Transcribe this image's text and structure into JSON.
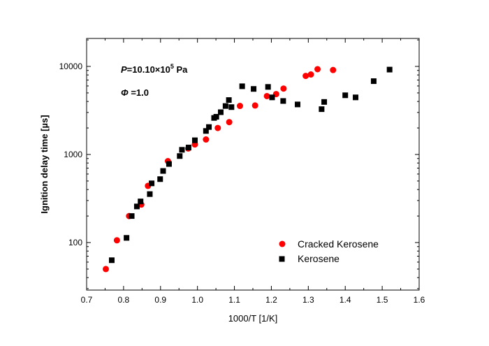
{
  "chart_data": {
    "type": "scatter",
    "xlabel": "1000/T  [1/K]",
    "ylabel": "Ignition delay time [µs]",
    "xlim": [
      0.7,
      1.6
    ],
    "ylim": [
      30,
      20000
    ],
    "y_scale": "log",
    "x_ticks": [
      "0.7",
      "0.8",
      "0.9",
      "1.0",
      "1.1",
      "1.2",
      "1.3",
      "1.4",
      "1.5",
      "1.6"
    ],
    "y_ticks": [
      "100",
      "1000",
      "10000"
    ],
    "grid": false,
    "legend_position": "bottom-right",
    "annotations": {
      "pressure_symbol": "P",
      "pressure_value": "=10.10×10",
      "pressure_exponent": "5",
      "pressure_unit": " Pa",
      "phi_symbol": "Φ",
      "phi_value": " =1.0"
    },
    "series": [
      {
        "name": "Cracked Kerosene",
        "marker": "circle",
        "color": "#ff0000",
        "points": [
          [
            0.752,
            50
          ],
          [
            0.782,
            106
          ],
          [
            0.815,
            200
          ],
          [
            0.848,
            270
          ],
          [
            0.866,
            440
          ],
          [
            0.92,
            840
          ],
          [
            0.975,
            1170
          ],
          [
            0.993,
            1300
          ],
          [
            1.023,
            1480
          ],
          [
            1.055,
            2000
          ],
          [
            1.086,
            2330
          ],
          [
            1.115,
            3560
          ],
          [
            1.156,
            3600
          ],
          [
            1.188,
            4600
          ],
          [
            1.213,
            4850
          ],
          [
            1.233,
            5600
          ],
          [
            1.293,
            7800
          ],
          [
            1.307,
            8100
          ],
          [
            1.325,
            9300
          ],
          [
            1.367,
            9100
          ]
        ]
      },
      {
        "name": "Kerosene",
        "marker": "square",
        "color": "#000000",
        "points": [
          [
            0.768,
            63
          ],
          [
            0.808,
            113
          ],
          [
            0.822,
            200
          ],
          [
            0.836,
            257
          ],
          [
            0.846,
            293
          ],
          [
            0.871,
            355
          ],
          [
            0.876,
            470
          ],
          [
            0.899,
            525
          ],
          [
            0.907,
            650
          ],
          [
            0.923,
            780
          ],
          [
            0.952,
            960
          ],
          [
            0.958,
            1130
          ],
          [
            0.976,
            1200
          ],
          [
            0.993,
            1450
          ],
          [
            1.023,
            1850
          ],
          [
            1.031,
            2050
          ],
          [
            1.045,
            2600
          ],
          [
            1.051,
            2680
          ],
          [
            1.063,
            3020
          ],
          [
            1.076,
            3550
          ],
          [
            1.085,
            4150
          ],
          [
            1.092,
            3450
          ],
          [
            1.121,
            5950
          ],
          [
            1.152,
            5550
          ],
          [
            1.191,
            5850
          ],
          [
            1.202,
            4450
          ],
          [
            1.232,
            4050
          ],
          [
            1.271,
            3700
          ],
          [
            1.336,
            3270
          ],
          [
            1.343,
            3950
          ],
          [
            1.4,
            4700
          ],
          [
            1.428,
            4450
          ],
          [
            1.477,
            6800
          ],
          [
            1.52,
            9200
          ]
        ]
      }
    ]
  }
}
